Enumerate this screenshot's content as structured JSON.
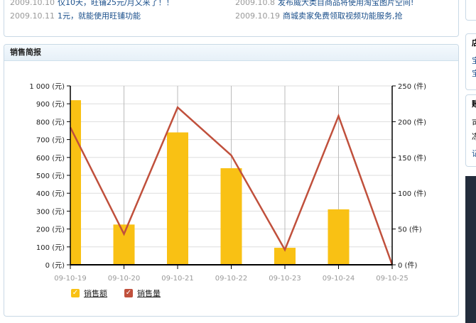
{
  "news": [
    {
      "date": "2009.10.10",
      "title": "仅10天，旺铺25元/月又来了！！"
    },
    {
      "date": "2009.10.8",
      "title": "发布威大类目商品将使用淘宝图片空间!"
    },
    {
      "date": "2009.10.11",
      "title": "1元，就能使用旺铺功能"
    },
    {
      "date": "2009.10.19",
      "title": "商城卖家免费领取视频功能服务,抢"
    }
  ],
  "sales_panel": {
    "title": "销售简报"
  },
  "right_column": {
    "box1": [
      "店",
      "宝",
      "宝"
    ],
    "box2": [
      "账",
      "可",
      "冻",
      "记"
    ]
  },
  "chart_data": {
    "type": "bar+line",
    "categories": [
      "09-10-19",
      "09-10-20",
      "09-10-21",
      "09-10-22",
      "09-10-23",
      "09-10-24",
      "09-10-25"
    ],
    "series": [
      {
        "name": "销售额",
        "type": "bar",
        "axis": "left",
        "color": "#f9c114",
        "values": [
          920,
          225,
          740,
          540,
          95,
          310,
          0
        ]
      },
      {
        "name": "销售量",
        "type": "line",
        "axis": "right",
        "color": "#c0503c",
        "values": [
          192,
          43,
          220,
          153,
          21,
          208,
          0
        ]
      }
    ],
    "left_axis": {
      "ticks": [
        "0 (元)",
        "100 (元)",
        "200 (元)",
        "300 (元)",
        "400 (元)",
        "500 (元)",
        "600 (元)",
        "700 (元)",
        "800 (元)",
        "900 (元)",
        "1 000 (元)"
      ],
      "range": [
        0,
        1000
      ]
    },
    "right_axis": {
      "ticks": [
        "0 (件)",
        "50 (件)",
        "100 (件)",
        "150 (件)",
        "200 (件)",
        "250 (件)"
      ],
      "range": [
        0,
        250
      ]
    },
    "grid": true,
    "legend": "bottom-left"
  }
}
